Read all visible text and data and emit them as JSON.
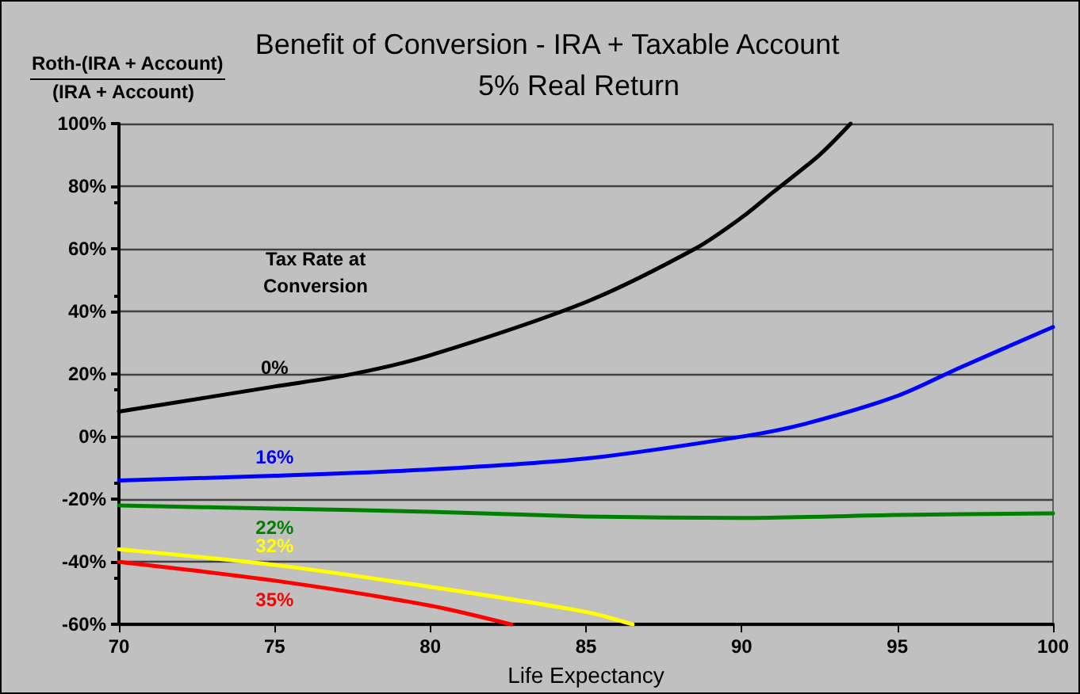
{
  "chart_data": {
    "type": "line",
    "title": "Benefit of Conversion - IRA + Taxable Account",
    "subtitle": "5% Real Return",
    "xlabel": "Life Expectancy",
    "ylabel": "Roth-(IRA + Account)\n(IRA + Account)",
    "annotations": [
      "Tax Rate at\nConversion"
    ],
    "xlim": [
      70,
      100
    ],
    "xticks": [
      70,
      75,
      80,
      85,
      90,
      95,
      100
    ],
    "ylim": [
      -60,
      100
    ],
    "yticks": [
      {
        "value": -60,
        "label": "-60%"
      },
      {
        "value": -40,
        "label": "-40%"
      },
      {
        "value": -20,
        "label": "-20%"
      },
      {
        "value": 0,
        "label": "0%"
      },
      {
        "value": 20,
        "label": "20%"
      },
      {
        "value": 40,
        "label": "40%"
      },
      {
        "value": 60,
        "label": "60%"
      },
      {
        "value": 80,
        "label": "80%"
      },
      {
        "value": 100,
        "label": "100%"
      }
    ],
    "grid": "y",
    "legend": false,
    "marker": "none",
    "line_style": "solid",
    "series": [
      {
        "name": "0%",
        "color": "#000000",
        "x": [
          70,
          75,
          77.5,
          80,
          85,
          88.5,
          90,
          91,
          92.5,
          93.5
        ],
        "values": [
          8,
          16,
          20,
          26,
          43,
          60,
          70,
          78,
          90,
          100
        ]
      },
      {
        "name": "16%",
        "color": "#0000ff",
        "x": [
          70,
          75,
          80,
          85,
          90,
          92,
          95,
          97,
          100
        ],
        "values": [
          -14,
          -12.5,
          -10.5,
          -7,
          0,
          4,
          13,
          22,
          35
        ]
      },
      {
        "name": "22%",
        "color": "#008000",
        "x": [
          70,
          75,
          80,
          85,
          90,
          95,
          100
        ],
        "values": [
          -22,
          -23,
          -24,
          -25.5,
          -26,
          -25,
          -24.5
        ]
      },
      {
        "name": "32%",
        "color": "#ffff00",
        "x": [
          70,
          75,
          80,
          85,
          86.5
        ],
        "values": [
          -36,
          -41,
          -48,
          -56,
          -60
        ]
      },
      {
        "name": "35%",
        "color": "#ff0000",
        "x": [
          70,
          75,
          80,
          82.6
        ],
        "values": [
          -40,
          -46,
          -54,
          -60
        ]
      }
    ]
  }
}
